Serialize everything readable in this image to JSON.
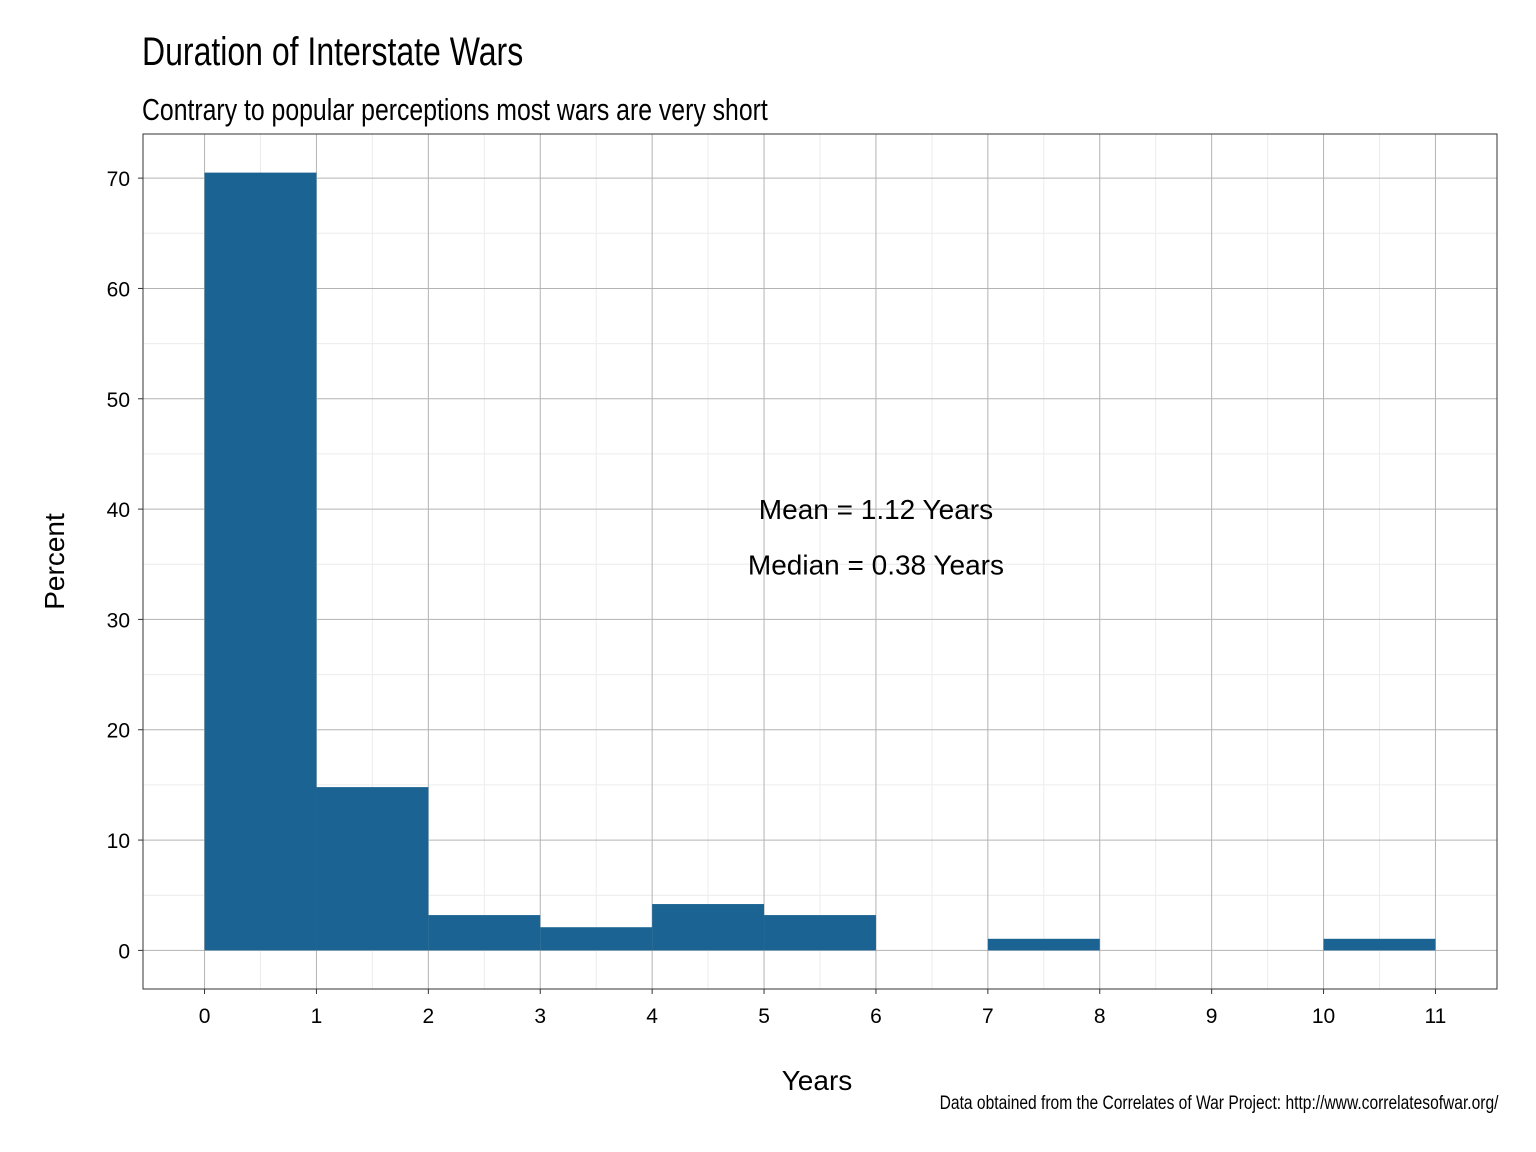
{
  "chart_data": {
    "type": "bar",
    "title": "Duration of Interstate Wars",
    "subtitle": "Contrary to popular perceptions most wars are very short",
    "caption": "Data obtained from the Correlates of War Project: http://www.correlatesofwar.org/",
    "xlabel": "Years",
    "ylabel": "Percent",
    "xlim": [
      -0.55,
      11.55
    ],
    "ylim": [
      -3.5,
      74
    ],
    "x_ticks": [
      "0",
      "1",
      "2",
      "3",
      "4",
      "5",
      "6",
      "7",
      "8",
      "9",
      "10",
      "11"
    ],
    "y_ticks": [
      "0",
      "10",
      "20",
      "30",
      "40",
      "50",
      "60",
      "70"
    ],
    "bins": [
      {
        "start": 0,
        "end": 1,
        "value": 70.5
      },
      {
        "start": 1,
        "end": 2,
        "value": 14.8
      },
      {
        "start": 2,
        "end": 3,
        "value": 3.2
      },
      {
        "start": 3,
        "end": 4,
        "value": 2.1
      },
      {
        "start": 4,
        "end": 5,
        "value": 4.2
      },
      {
        "start": 5,
        "end": 6,
        "value": 3.2
      },
      {
        "start": 6,
        "end": 7,
        "value": 0
      },
      {
        "start": 7,
        "end": 8,
        "value": 1.05
      },
      {
        "start": 8,
        "end": 9,
        "value": 0
      },
      {
        "start": 9,
        "end": 10,
        "value": 0
      },
      {
        "start": 10,
        "end": 11,
        "value": 1.05
      }
    ],
    "annotations": [
      {
        "text": "Mean = 1.12 Years",
        "x": 6.0,
        "y": 40
      },
      {
        "text": "Median = 0.38 Years",
        "x": 6.0,
        "y": 35
      }
    ],
    "bar_color": "#1b6392",
    "grid": true,
    "legend": "none"
  }
}
